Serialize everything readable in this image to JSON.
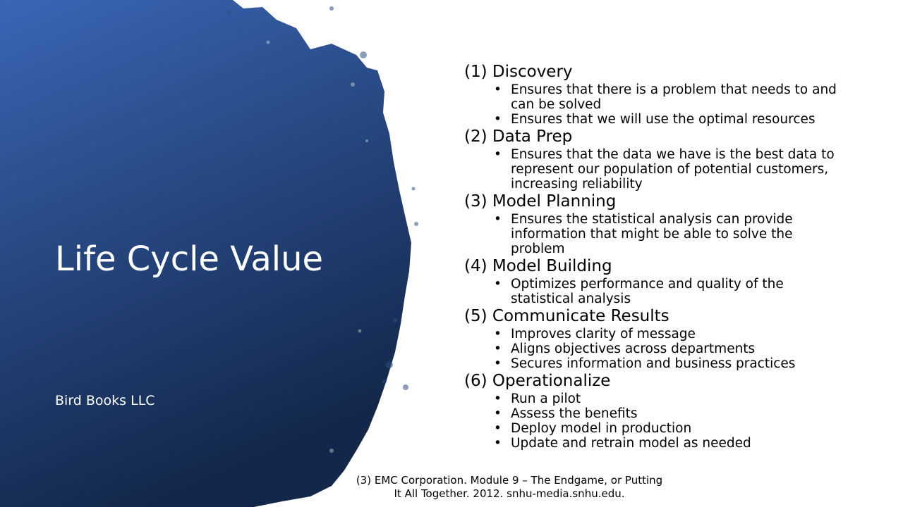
{
  "slide": {
    "title": "Life Cycle Value",
    "subtitle": "Bird Books LLC",
    "colors": {
      "shape_top": "#3a66b5",
      "shape_bottom": "#13274a",
      "text_light": "#ffffff",
      "text_dark": "#000000"
    },
    "sections": [
      {
        "heading": "(1) Discovery",
        "bullets": [
          "Ensures that there is a problem that needs to and can be solved",
          "Ensures that we will use the optimal resources"
        ]
      },
      {
        "heading": "(2) Data Prep",
        "bullets": [
          "Ensures that the data we have is the best data to represent our population of potential customers, increasing reliability"
        ]
      },
      {
        "heading": "(3) Model Planning",
        "bullets": [
          "Ensures the statistical analysis can provide information that might be able to solve the problem"
        ]
      },
      {
        "heading": "(4) Model Building",
        "bullets": [
          "Optimizes performance and quality of the statistical analysis"
        ]
      },
      {
        "heading": "(5) Communicate Results",
        "bullets": [
          "Improves clarity of message",
          "Aligns objectives across departments",
          "Secures information and business practices"
        ]
      },
      {
        "heading": "(6) Operationalize",
        "bullets": [
          "Run a pilot",
          "Assess the benefits",
          "Deploy model in production",
          "Update and retrain model as needed"
        ]
      }
    ],
    "citation": "(3) EMC Corporation. Module 9 – The Endgame, or Putting It All Together. 2012. snhu-media.snhu.edu."
  }
}
